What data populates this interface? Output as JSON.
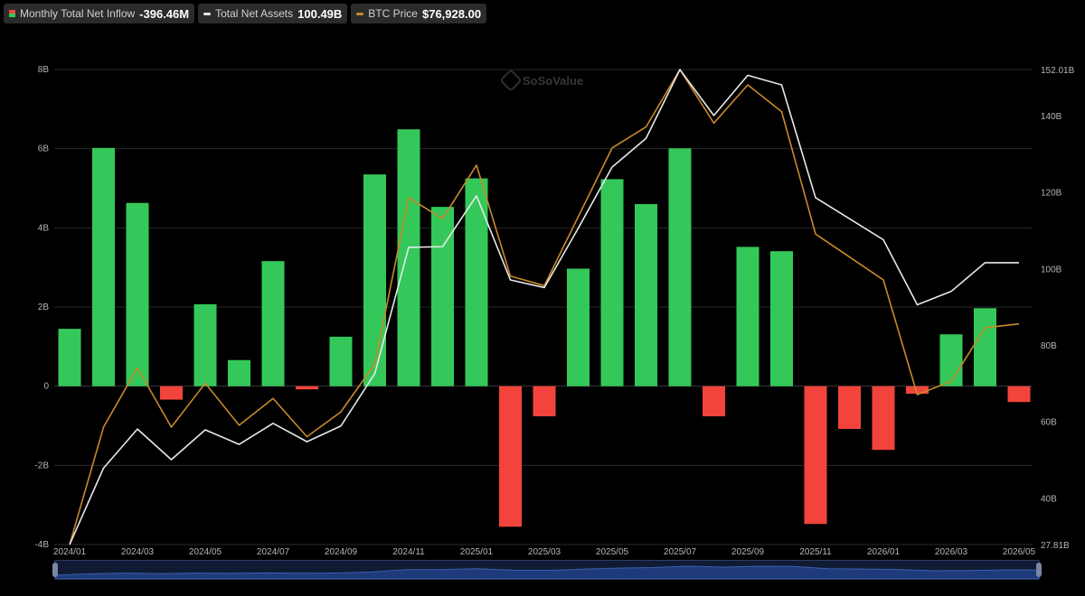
{
  "legend": {
    "inflow_label": "Monthly Total Net Inflow",
    "inflow_value": "-396.46M",
    "assets_label": "Total Net Assets",
    "assets_value": "100.49B",
    "btc_label": "BTC Price",
    "btc_value": "$76,928.00"
  },
  "watermark": {
    "brand": "SoSoValue"
  },
  "colors": {
    "positive": "#34c85a",
    "negative": "#f2443c",
    "assets_line": "#e8e8e8",
    "btc_line": "#c8892a",
    "background": "#000000"
  },
  "chart_data": {
    "type": "bar",
    "title": "",
    "months": [
      "2024/01",
      "2024/02",
      "2024/03",
      "2024/04",
      "2024/05",
      "2024/06",
      "2024/07",
      "2024/08",
      "2024/09",
      "2024/10",
      "2024/11",
      "2024/12",
      "2025/01",
      "2025/02",
      "2025/03",
      "2025/04",
      "2025/05",
      "2025/06",
      "2025/07",
      "2025/08",
      "2025/09",
      "2025/10",
      "2025/11",
      "2025/12",
      "2026/01",
      "2026/02",
      "2026/03",
      "2026/04",
      "2026/05"
    ],
    "x_tick_labels": [
      "2024/01",
      "2024/03",
      "2024/05",
      "2024/07",
      "2024/09",
      "2024/11",
      "2025/01",
      "2025/03",
      "2025/05",
      "2025/07",
      "2025/09",
      "2025/11",
      "2026/01",
      "2026/03",
      "2026/05"
    ],
    "left_axis": {
      "ylim": [
        -4,
        8
      ],
      "tick_labels": [
        "-4B",
        "-2B",
        "0",
        "2B",
        "4B",
        "6B",
        "8B"
      ],
      "tick_values": [
        -4,
        -2,
        0,
        2,
        4,
        6,
        8
      ]
    },
    "right_axis": {
      "ylim": [
        27.81,
        152.01
      ],
      "tick_labels": [
        "27.81B",
        "40B",
        "60B",
        "80B",
        "100B",
        "120B",
        "140B",
        "152.01B"
      ],
      "tick_values": [
        27.81,
        40,
        60,
        80,
        100,
        120,
        140,
        152.01
      ]
    },
    "series": [
      {
        "name": "Monthly Total Net Inflow",
        "axis": "left",
        "unit": "B",
        "values": [
          1.45,
          6.02,
          4.63,
          -0.34,
          2.07,
          0.66,
          3.16,
          -0.08,
          1.25,
          5.35,
          6.49,
          4.53,
          5.25,
          -3.55,
          -0.76,
          2.97,
          5.23,
          4.6,
          6.01,
          -0.76,
          3.52,
          3.41,
          -3.48,
          -1.08,
          -1.61,
          -0.19,
          1.31,
          1.97,
          -0.4
        ]
      },
      {
        "name": "Total Net Assets",
        "axis": "right",
        "unit": "B",
        "values": [
          27.8,
          47.8,
          58.0,
          50.0,
          57.8,
          54.0,
          59.5,
          54.7,
          58.8,
          72.5,
          105.5,
          105.7,
          119.0,
          97.0,
          95.0,
          110.5,
          126.5,
          134.0,
          152.0,
          140.0,
          150.5,
          148.0,
          118.5,
          113.0,
          107.5,
          90.5,
          94.0,
          101.5,
          101.5
        ]
      },
      {
        "name": "BTC Price",
        "axis": "right",
        "unit": "B-equivalent scale",
        "values": [
          27.8,
          58.5,
          74.0,
          58.5,
          70.0,
          59.0,
          66.0,
          56.0,
          62.5,
          75.0,
          118.5,
          113.0,
          127.0,
          98.0,
          95.5,
          113.5,
          131.5,
          137.0,
          152.0,
          138.0,
          148.0,
          141.0,
          109.0,
          103.0,
          97.0,
          67.0,
          70.5,
          84.5,
          85.5
        ]
      }
    ]
  }
}
